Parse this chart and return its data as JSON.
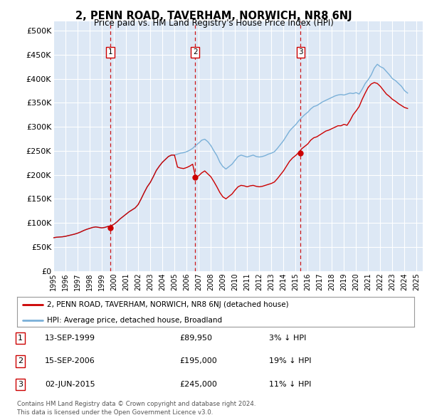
{
  "title": "2, PENN ROAD, TAVERHAM, NORWICH, NR8 6NJ",
  "subtitle": "Price paid vs. HM Land Registry's House Price Index (HPI)",
  "bg_color": "#dde8f5",
  "grid_color": "#ffffff",
  "ylim": [
    0,
    520000
  ],
  "yticks": [
    0,
    50000,
    100000,
    150000,
    200000,
    250000,
    300000,
    350000,
    400000,
    450000,
    500000
  ],
  "ytick_labels": [
    "£0",
    "£50K",
    "£100K",
    "£150K",
    "£200K",
    "£250K",
    "£300K",
    "£350K",
    "£400K",
    "£450K",
    "£500K"
  ],
  "sale_dates": [
    "1999-09-13",
    "2006-09-15",
    "2015-06-02"
  ],
  "sale_prices": [
    89950,
    195000,
    245000
  ],
  "sale_labels": [
    "1",
    "2",
    "3"
  ],
  "red_line_color": "#cc0000",
  "blue_line_color": "#7ab0d8",
  "dashed_line_color": "#cc0000",
  "legend_entry1": "2, PENN ROAD, TAVERHAM, NORWICH, NR8 6NJ (detached house)",
  "legend_entry2": "HPI: Average price, detached house, Broadland",
  "table_rows": [
    {
      "num": "1",
      "date": "13-SEP-1999",
      "price": "£89,950",
      "hpi": "3% ↓ HPI"
    },
    {
      "num": "2",
      "date": "15-SEP-2006",
      "price": "£195,000",
      "hpi": "19% ↓ HPI"
    },
    {
      "num": "3",
      "date": "02-JUN-2015",
      "price": "£245,000",
      "hpi": "11% ↓ HPI"
    }
  ],
  "footer1": "Contains HM Land Registry data © Crown copyright and database right 2024.",
  "footer2": "This data is licensed under the Open Government Licence v3.0.",
  "hpi_data_t": [
    1995.0,
    1995.25,
    1995.5,
    1995.75,
    1996.0,
    1996.25,
    1996.5,
    1996.75,
    1997.0,
    1997.25,
    1997.5,
    1997.75,
    1998.0,
    1998.25,
    1998.5,
    1998.75,
    1999.0,
    1999.25,
    1999.5,
    1999.75,
    2000.0,
    2000.25,
    2000.5,
    2000.75,
    2001.0,
    2001.25,
    2001.5,
    2001.75,
    2002.0,
    2002.25,
    2002.5,
    2002.75,
    2003.0,
    2003.25,
    2003.5,
    2003.75,
    2004.0,
    2004.25,
    2004.5,
    2004.75,
    2005.0,
    2005.25,
    2005.5,
    2005.75,
    2006.0,
    2006.25,
    2006.5,
    2006.75,
    2007.0,
    2007.25,
    2007.5,
    2007.75,
    2008.0,
    2008.25,
    2008.5,
    2008.75,
    2009.0,
    2009.25,
    2009.5,
    2009.75,
    2010.0,
    2010.25,
    2010.5,
    2010.75,
    2011.0,
    2011.25,
    2011.5,
    2011.75,
    2012.0,
    2012.25,
    2012.5,
    2012.75,
    2013.0,
    2013.25,
    2013.5,
    2013.75,
    2014.0,
    2014.25,
    2014.5,
    2014.75,
    2015.0,
    2015.25,
    2015.5,
    2015.75,
    2016.0,
    2016.25,
    2016.5,
    2016.75,
    2017.0,
    2017.25,
    2017.5,
    2017.75,
    2018.0,
    2018.25,
    2018.5,
    2018.75,
    2019.0,
    2019.25,
    2019.5,
    2019.75,
    2020.0,
    2020.25,
    2020.5,
    2020.75,
    2021.0,
    2021.25,
    2021.5,
    2021.75,
    2022.0,
    2022.25,
    2022.5,
    2022.75,
    2023.0,
    2023.25,
    2023.5,
    2023.75,
    2024.0,
    2024.25
  ],
  "hpi_values": [
    69000,
    70000,
    70500,
    71000,
    72000,
    73500,
    75000,
    76500,
    78500,
    81000,
    84000,
    86500,
    88500,
    90500,
    91500,
    90500,
    89500,
    90500,
    92500,
    93500,
    97000,
    102000,
    108000,
    113000,
    118000,
    123000,
    127000,
    131000,
    138000,
    150000,
    163000,
    175000,
    184000,
    196000,
    209000,
    218000,
    226000,
    232000,
    238000,
    241000,
    241000,
    243000,
    245000,
    246000,
    248000,
    251000,
    255000,
    261000,
    266000,
    272000,
    274000,
    269000,
    261000,
    250000,
    240000,
    226000,
    217000,
    212000,
    217000,
    222000,
    230000,
    238000,
    241000,
    239000,
    237000,
    239000,
    241000,
    238000,
    237000,
    238000,
    240000,
    243000,
    245000,
    248000,
    255000,
    263000,
    271000,
    281000,
    291000,
    298000,
    304000,
    312000,
    319000,
    325000,
    330000,
    337000,
    342000,
    344000,
    348000,
    352000,
    355000,
    358000,
    361000,
    364000,
    366000,
    367000,
    366000,
    368000,
    370000,
    369000,
    371000,
    368000,
    378000,
    390000,
    398000,
    408000,
    422000,
    430000,
    425000,
    422000,
    415000,
    408000,
    400000,
    396000,
    390000,
    384000,
    375000,
    370000
  ],
  "red_values": [
    69000,
    70000,
    70500,
    71000,
    72000,
    73500,
    75000,
    76500,
    78500,
    81000,
    84000,
    86500,
    88500,
    90500,
    91500,
    90500,
    89500,
    90500,
    92500,
    93500,
    97000,
    102000,
    108000,
    113000,
    118000,
    123000,
    127000,
    131000,
    138000,
    150000,
    163000,
    175000,
    184000,
    196000,
    209000,
    218000,
    226000,
    232000,
    238000,
    241000,
    241000,
    216000,
    214000,
    213000,
    215000,
    218000,
    222000,
    195000,
    198000,
    204000,
    208000,
    202000,
    196000,
    186000,
    175000,
    163000,
    154000,
    150000,
    155000,
    160000,
    168000,
    175000,
    178000,
    177000,
    175000,
    177000,
    178000,
    176000,
    175000,
    176000,
    178000,
    180000,
    182000,
    185000,
    192000,
    200000,
    208000,
    218000,
    228000,
    235000,
    240000,
    246000,
    254000,
    259000,
    264000,
    272000,
    277000,
    279000,
    283000,
    287000,
    291000,
    293000,
    296000,
    299000,
    302000,
    302000,
    305000,
    303000,
    313000,
    325000,
    333000,
    342000,
    357000,
    370000,
    382000,
    389000,
    392000,
    390000,
    384000,
    376000,
    368000,
    363000,
    357000,
    353000,
    348000,
    344000,
    340000,
    338000
  ]
}
